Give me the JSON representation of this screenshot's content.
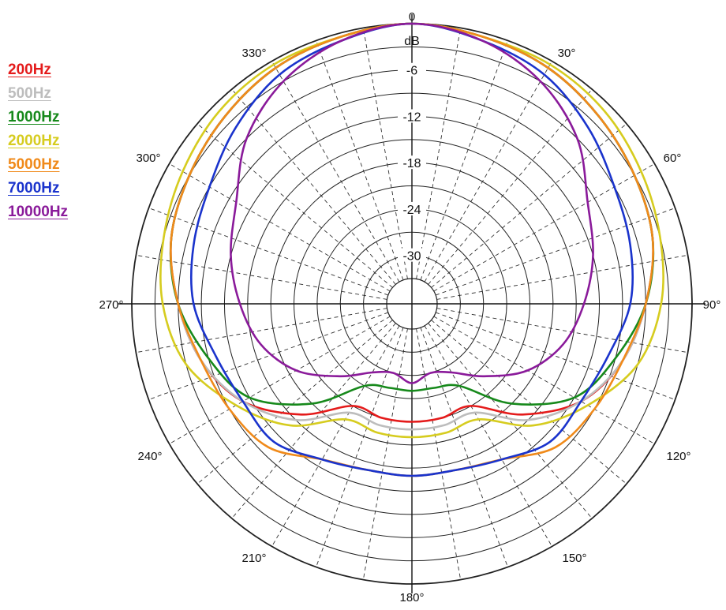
{
  "chart_data": {
    "type": "polar",
    "units_label": "dB",
    "radial_ticks": [
      {
        "value": 0,
        "label": "0"
      },
      {
        "value": -6,
        "label": "-6"
      },
      {
        "value": -12,
        "label": "-12"
      },
      {
        "value": -18,
        "label": "-18"
      },
      {
        "value": -24,
        "label": "-24"
      },
      {
        "value": -30,
        "label": "-30"
      }
    ],
    "rlim": [
      -33,
      0
    ],
    "angle_ticks": [
      {
        "angle": 0,
        "label": "0"
      },
      {
        "angle": 30,
        "label": "30°"
      },
      {
        "angle": 60,
        "label": "60°"
      },
      {
        "angle": 90,
        "label": "90°"
      },
      {
        "angle": 120,
        "label": "120°"
      },
      {
        "angle": 150,
        "label": "150°"
      },
      {
        "angle": 180,
        "label": "180°"
      },
      {
        "angle": 210,
        "label": "210°"
      },
      {
        "angle": 240,
        "label": "240°"
      },
      {
        "angle": 270,
        "label": "270°"
      },
      {
        "angle": 300,
        "label": "300°"
      },
      {
        "angle": 330,
        "label": "330°"
      }
    ],
    "grid": true,
    "legend_position": "top-left",
    "angles": [
      0,
      15,
      30,
      45,
      60,
      75,
      90,
      105,
      120,
      135,
      150,
      165,
      180,
      195,
      210,
      225,
      240,
      255,
      270,
      285,
      300,
      315,
      330,
      345
    ],
    "series": [
      {
        "name": "200Hz",
        "color": "#e41b1b",
        "values": [
          0,
          -0.5,
          -1,
          -2,
          -3,
          -4,
          -6,
          -8,
          -11,
          -16,
          -21,
          -21,
          -21,
          -21,
          -21,
          -16,
          -11,
          -8,
          -6,
          -4,
          -3,
          -2,
          -1,
          -0.5
        ]
      },
      {
        "name": "500Hz",
        "color": "#bdbdbd",
        "values": [
          0,
          -0.5,
          -1,
          -2,
          -3,
          -4,
          -6,
          -8,
          -11,
          -15,
          -20,
          -20,
          -20,
          -20,
          -20,
          -15,
          -11,
          -8,
          -6,
          -4,
          -3,
          -2,
          -1,
          -0.5
        ]
      },
      {
        "name": "1000Hz",
        "color": "#16891b",
        "values": [
          0,
          -0.5,
          -1,
          -2,
          -3,
          -4,
          -6,
          -9,
          -12,
          -18,
          -24,
          -25,
          -25,
          -25,
          -24,
          -18,
          -12,
          -9,
          -6,
          -4,
          -3,
          -2,
          -1,
          -0.5
        ]
      },
      {
        "name": "2000Hz",
        "color": "#d6cc1f",
        "values": [
          0,
          -0.5,
          -0.5,
          -1,
          -2,
          -3,
          -4,
          -6,
          -10,
          -14,
          -19,
          -19,
          -19,
          -19,
          -19,
          -14,
          -10,
          -6,
          -4,
          -3,
          -2,
          -1,
          -0.5,
          -0.5
        ]
      },
      {
        "name": "5000Hz",
        "color": "#f08a1a",
        "values": [
          0,
          -0.5,
          -1,
          -2,
          -3,
          -4,
          -6,
          -8,
          -9,
          -10,
          -13,
          -14,
          -14,
          -14,
          -13,
          -10,
          -9,
          -8,
          -6,
          -4,
          -3,
          -2,
          -1,
          -0.5
        ]
      },
      {
        "name": "7000Hz",
        "color": "#1a33cc",
        "values": [
          0,
          -1,
          -2,
          -4,
          -6,
          -7,
          -8,
          -10,
          -11,
          -11,
          -13,
          -14,
          -14,
          -14,
          -13,
          -11,
          -11,
          -10,
          -8,
          -7,
          -6,
          -4,
          -2,
          -1
        ]
      },
      {
        "name": "10000Hz",
        "color": "#8a1a9a",
        "values": [
          0,
          -1,
          -3,
          -6,
          -10,
          -12,
          -14,
          -16,
          -19,
          -23,
          -26,
          -27,
          -26,
          -27,
          -26,
          -23,
          -19,
          -16,
          -14,
          -12,
          -10,
          -6,
          -3,
          -1
        ]
      }
    ]
  }
}
